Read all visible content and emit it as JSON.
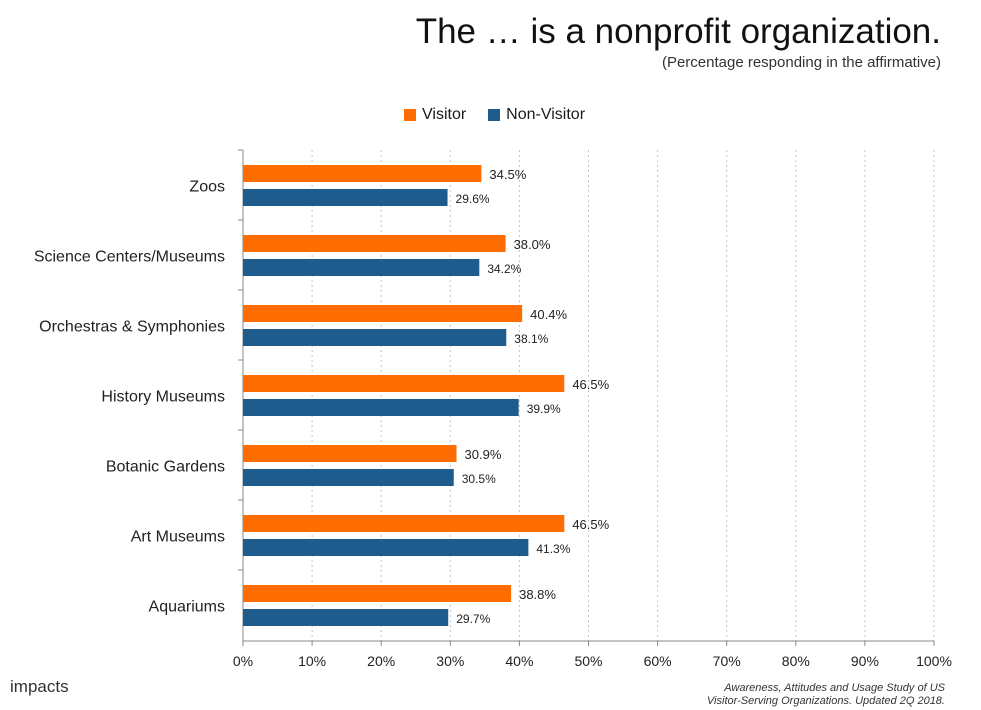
{
  "chart_data": {
    "type": "bar",
    "orientation": "horizontal",
    "title": "The … is a nonprofit organization.",
    "subtitle": "(Percentage responding in the affirmative)",
    "categories": [
      "Zoos",
      "Science Centers/Museums",
      "Orchestras & Symphonies",
      "History Museums",
      "Botanic Gardens",
      "Art Museums",
      "Aquariums"
    ],
    "series": [
      {
        "name": "Visitor",
        "color": "#ff6d00",
        "values": [
          34.5,
          38.0,
          40.4,
          46.5,
          30.9,
          46.5,
          38.8
        ],
        "labels": [
          "34.5%",
          "38.0%",
          "40.4%",
          "46.5%",
          "30.9%",
          "46.5%",
          "38.8%"
        ]
      },
      {
        "name": "Non-Visitor",
        "color": "#1f5c8e",
        "values": [
          29.6,
          34.2,
          38.1,
          39.9,
          30.5,
          41.3,
          29.7
        ],
        "labels": [
          "29.6%",
          "34.2%",
          "38.1%",
          "39.9%",
          "30.5%",
          "41.3%",
          "29.7%"
        ]
      }
    ],
    "xlim": [
      0,
      100
    ],
    "xticks": [
      "0%",
      "10%",
      "20%",
      "30%",
      "40%",
      "50%",
      "60%",
      "70%",
      "80%",
      "90%",
      "100%"
    ],
    "grid": true,
    "legend_position": "top-center"
  },
  "footer": {
    "logo_text": "impacts",
    "source_line1": "Awareness, Attitudes and Usage Study of US",
    "source_line2": "Visitor-Serving Organizations. Updated 2Q 2018."
  }
}
